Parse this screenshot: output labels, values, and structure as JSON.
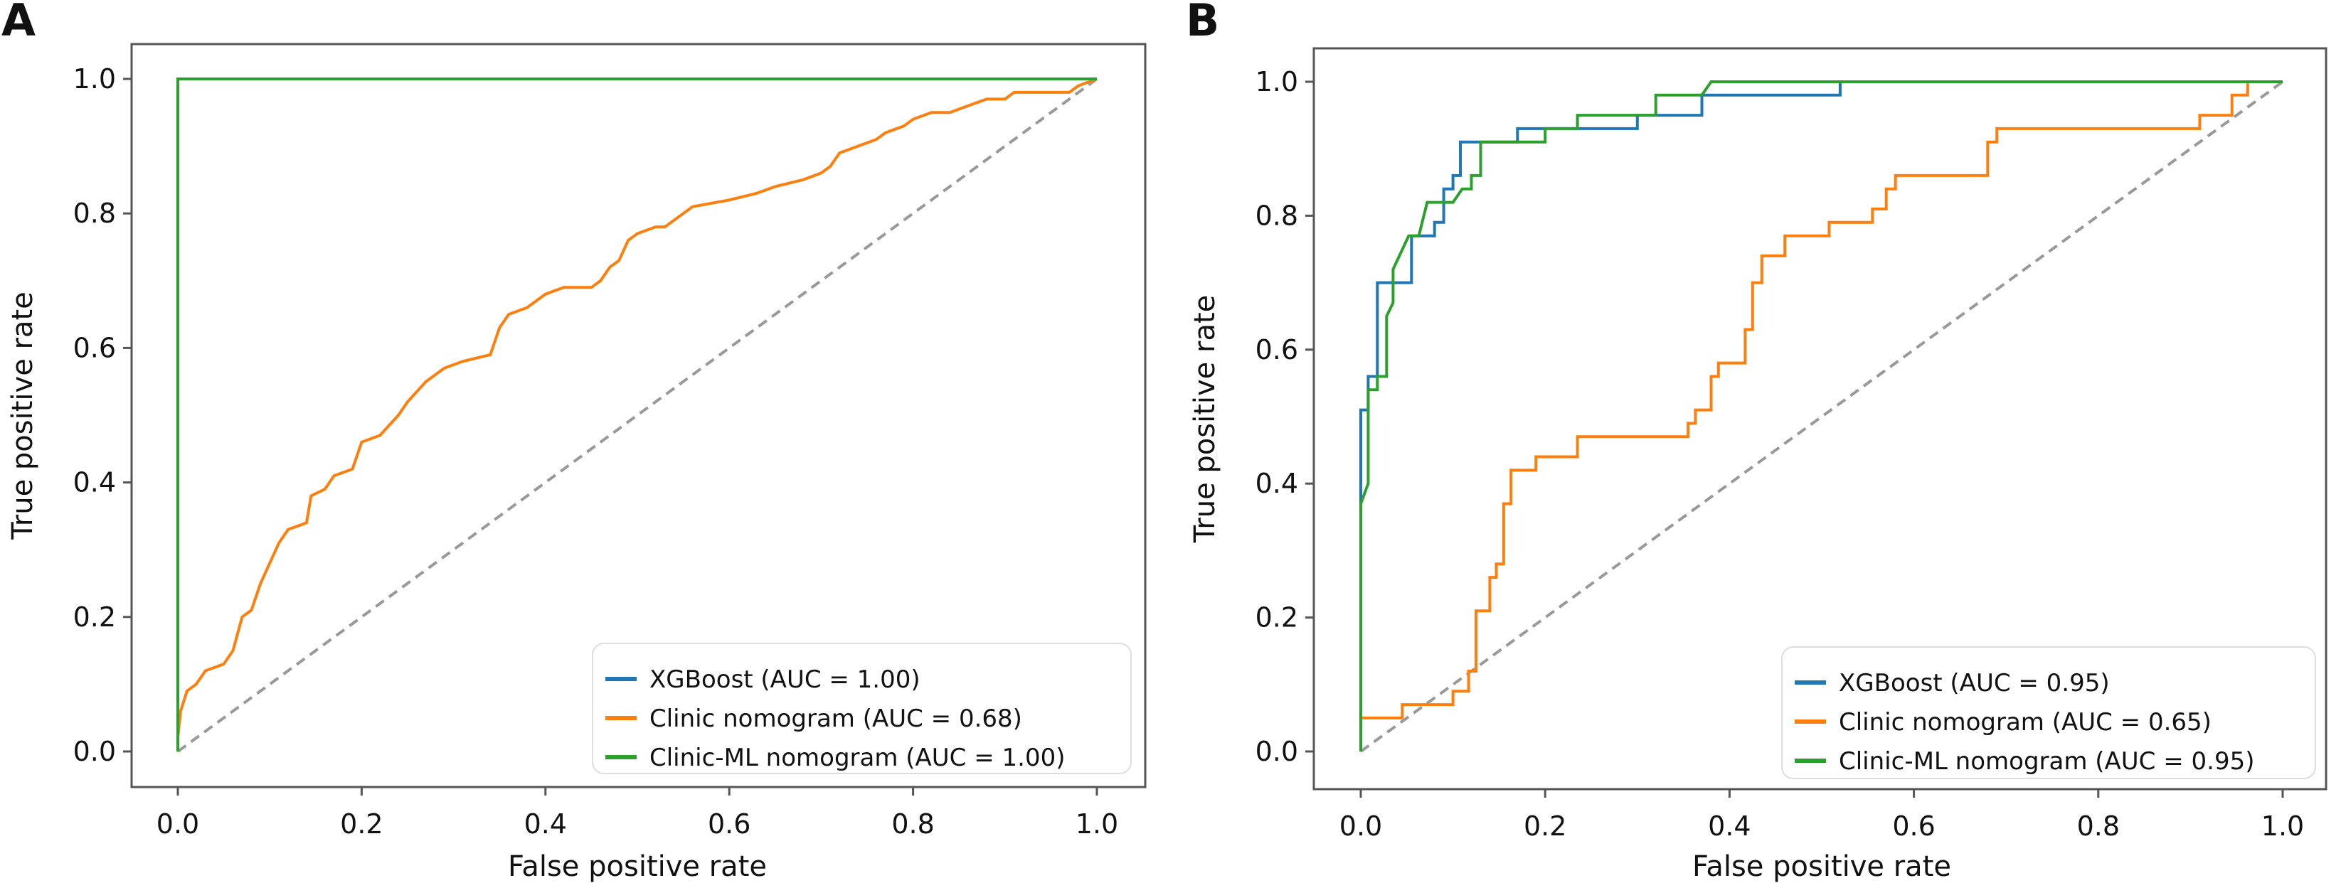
{
  "figure": {
    "panels": [
      "A",
      "B"
    ]
  },
  "chart_data": [
    {
      "panel_label": "A",
      "type": "line",
      "title": "",
      "xlabel": "False positive rate",
      "ylabel": "True positive rate",
      "xlim": [
        0,
        1
      ],
      "ylim": [
        0,
        1
      ],
      "xticks": [
        "0.0",
        "0.2",
        "0.4",
        "0.6",
        "0.8",
        "1.0"
      ],
      "yticks": [
        "0.0",
        "0.2",
        "0.4",
        "0.6",
        "0.8",
        "1.0"
      ],
      "grid": false,
      "legend_position": "lower-right",
      "reference_line": {
        "name": "chance",
        "style": "dashed",
        "color": "#999999",
        "points": [
          [
            0,
            0
          ],
          [
            1,
            1
          ]
        ]
      },
      "series": [
        {
          "name": "XGBoost (AUC = 1.00)",
          "auc": 1.0,
          "color": "#1f77b4",
          "points": [
            [
              0,
              0
            ],
            [
              0,
              1
            ],
            [
              1,
              1
            ]
          ]
        },
        {
          "name": "Clinic nomogram (AUC = 0.68)",
          "auc": 0.68,
          "color": "#ff7f0e",
          "points": [
            [
              0,
              0
            ],
            [
              0,
              0.02
            ],
            [
              0.003,
              0.06
            ],
            [
              0.01,
              0.09
            ],
            [
              0.02,
              0.1
            ],
            [
              0.03,
              0.12
            ],
            [
              0.05,
              0.13
            ],
            [
              0.06,
              0.15
            ],
            [
              0.07,
              0.2
            ],
            [
              0.08,
              0.21
            ],
            [
              0.09,
              0.25
            ],
            [
              0.1,
              0.28
            ],
            [
              0.11,
              0.31
            ],
            [
              0.12,
              0.33
            ],
            [
              0.14,
              0.34
            ],
            [
              0.145,
              0.38
            ],
            [
              0.16,
              0.39
            ],
            [
              0.17,
              0.41
            ],
            [
              0.19,
              0.42
            ],
            [
              0.2,
              0.46
            ],
            [
              0.22,
              0.47
            ],
            [
              0.24,
              0.5
            ],
            [
              0.25,
              0.52
            ],
            [
              0.27,
              0.55
            ],
            [
              0.29,
              0.57
            ],
            [
              0.31,
              0.58
            ],
            [
              0.34,
              0.59
            ],
            [
              0.35,
              0.63
            ],
            [
              0.36,
              0.65
            ],
            [
              0.38,
              0.66
            ],
            [
              0.4,
              0.68
            ],
            [
              0.42,
              0.69
            ],
            [
              0.45,
              0.69
            ],
            [
              0.46,
              0.7
            ],
            [
              0.47,
              0.72
            ],
            [
              0.48,
              0.73
            ],
            [
              0.49,
              0.76
            ],
            [
              0.5,
              0.77
            ],
            [
              0.52,
              0.78
            ],
            [
              0.53,
              0.78
            ],
            [
              0.55,
              0.8
            ],
            [
              0.56,
              0.81
            ],
            [
              0.6,
              0.82
            ],
            [
              0.63,
              0.83
            ],
            [
              0.65,
              0.84
            ],
            [
              0.68,
              0.85
            ],
            [
              0.7,
              0.86
            ],
            [
              0.71,
              0.87
            ],
            [
              0.72,
              0.89
            ],
            [
              0.74,
              0.9
            ],
            [
              0.76,
              0.91
            ],
            [
              0.77,
              0.92
            ],
            [
              0.79,
              0.93
            ],
            [
              0.8,
              0.94
            ],
            [
              0.82,
              0.95
            ],
            [
              0.84,
              0.95
            ],
            [
              0.86,
              0.96
            ],
            [
              0.88,
              0.97
            ],
            [
              0.9,
              0.97
            ],
            [
              0.91,
              0.98
            ],
            [
              0.97,
              0.98
            ],
            [
              0.98,
              0.99
            ],
            [
              1,
              1
            ]
          ]
        },
        {
          "name": "Clinic-ML nomogram (AUC = 1.00)",
          "auc": 1.0,
          "color": "#2ca02c",
          "points": [
            [
              0,
              0
            ],
            [
              0,
              1
            ],
            [
              1,
              1
            ]
          ]
        }
      ]
    },
    {
      "panel_label": "B",
      "type": "line",
      "title": "",
      "xlabel": "False positive rate",
      "ylabel": "True positive rate",
      "xlim": [
        0,
        1
      ],
      "ylim": [
        0,
        1
      ],
      "xticks": [
        "0.0",
        "0.2",
        "0.4",
        "0.6",
        "0.8",
        "1.0"
      ],
      "yticks": [
        "0.0",
        "0.2",
        "0.4",
        "0.6",
        "0.8",
        "1.0"
      ],
      "grid": false,
      "legend_position": "lower-right",
      "reference_line": {
        "name": "chance",
        "style": "dashed",
        "color": "#999999",
        "points": [
          [
            0,
            0
          ],
          [
            1,
            1
          ]
        ]
      },
      "series": [
        {
          "name": "XGBoost (AUC = 0.95)",
          "auc": 0.95,
          "color": "#1f77b4",
          "points": [
            [
              0,
              0
            ],
            [
              0,
              0.37
            ],
            [
              0,
              0.51
            ],
            [
              0.008,
              0.51
            ],
            [
              0.008,
              0.56
            ],
            [
              0.018,
              0.56
            ],
            [
              0.018,
              0.7
            ],
            [
              0.055,
              0.7
            ],
            [
              0.055,
              0.77
            ],
            [
              0.08,
              0.77
            ],
            [
              0.08,
              0.79
            ],
            [
              0.09,
              0.79
            ],
            [
              0.09,
              0.84
            ],
            [
              0.1,
              0.84
            ],
            [
              0.1,
              0.86
            ],
            [
              0.108,
              0.86
            ],
            [
              0.108,
              0.91
            ],
            [
              0.17,
              0.91
            ],
            [
              0.17,
              0.93
            ],
            [
              0.3,
              0.93
            ],
            [
              0.3,
              0.95
            ],
            [
              0.37,
              0.95
            ],
            [
              0.37,
              0.98
            ],
            [
              0.52,
              0.98
            ],
            [
              0.52,
              1
            ],
            [
              1,
              1
            ]
          ]
        },
        {
          "name": "Clinic nomogram (AUC = 0.65)",
          "auc": 0.65,
          "color": "#ff7f0e",
          "points": [
            [
              0,
              0
            ],
            [
              0,
              0.05
            ],
            [
              0.045,
              0.05
            ],
            [
              0.045,
              0.07
            ],
            [
              0.1,
              0.07
            ],
            [
              0.1,
              0.09
            ],
            [
              0.117,
              0.09
            ],
            [
              0.117,
              0.12
            ],
            [
              0.125,
              0.12
            ],
            [
              0.125,
              0.21
            ],
            [
              0.14,
              0.21
            ],
            [
              0.14,
              0.26
            ],
            [
              0.147,
              0.26
            ],
            [
              0.147,
              0.28
            ],
            [
              0.155,
              0.28
            ],
            [
              0.155,
              0.37
            ],
            [
              0.163,
              0.37
            ],
            [
              0.163,
              0.42
            ],
            [
              0.19,
              0.42
            ],
            [
              0.19,
              0.44
            ],
            [
              0.235,
              0.44
            ],
            [
              0.235,
              0.47
            ],
            [
              0.355,
              0.47
            ],
            [
              0.355,
              0.49
            ],
            [
              0.363,
              0.49
            ],
            [
              0.363,
              0.51
            ],
            [
              0.38,
              0.51
            ],
            [
              0.38,
              0.56
            ],
            [
              0.388,
              0.56
            ],
            [
              0.388,
              0.58
            ],
            [
              0.417,
              0.58
            ],
            [
              0.417,
              0.63
            ],
            [
              0.425,
              0.63
            ],
            [
              0.425,
              0.7
            ],
            [
              0.435,
              0.7
            ],
            [
              0.435,
              0.74
            ],
            [
              0.46,
              0.74
            ],
            [
              0.46,
              0.77
            ],
            [
              0.508,
              0.77
            ],
            [
              0.508,
              0.79
            ],
            [
              0.555,
              0.79
            ],
            [
              0.555,
              0.81
            ],
            [
              0.57,
              0.81
            ],
            [
              0.57,
              0.84
            ],
            [
              0.58,
              0.84
            ],
            [
              0.58,
              0.86
            ],
            [
              0.68,
              0.86
            ],
            [
              0.68,
              0.91
            ],
            [
              0.69,
              0.91
            ],
            [
              0.69,
              0.93
            ],
            [
              0.91,
              0.93
            ],
            [
              0.91,
              0.95
            ],
            [
              0.945,
              0.95
            ],
            [
              0.945,
              0.98
            ],
            [
              0.962,
              0.98
            ],
            [
              0.962,
              1
            ],
            [
              1,
              1
            ]
          ]
        },
        {
          "name": "Clinic-ML nomogram (AUC = 0.95)",
          "auc": 0.95,
          "color": "#2ca02c",
          "points": [
            [
              0,
              0
            ],
            [
              0,
              0.37
            ],
            [
              0.008,
              0.4
            ],
            [
              0.008,
              0.54
            ],
            [
              0.018,
              0.54
            ],
            [
              0.018,
              0.56
            ],
            [
              0.028,
              0.56
            ],
            [
              0.028,
              0.65
            ],
            [
              0.035,
              0.67
            ],
            [
              0.035,
              0.72
            ],
            [
              0.052,
              0.77
            ],
            [
              0.063,
              0.77
            ],
            [
              0.072,
              0.82
            ],
            [
              0.1,
              0.82
            ],
            [
              0.11,
              0.84
            ],
            [
              0.12,
              0.84
            ],
            [
              0.12,
              0.86
            ],
            [
              0.13,
              0.86
            ],
            [
              0.13,
              0.91
            ],
            [
              0.2,
              0.91
            ],
            [
              0.2,
              0.93
            ],
            [
              0.235,
              0.93
            ],
            [
              0.235,
              0.95
            ],
            [
              0.32,
              0.95
            ],
            [
              0.32,
              0.98
            ],
            [
              0.37,
              0.98
            ],
            [
              0.38,
              1
            ],
            [
              1,
              1
            ]
          ]
        }
      ]
    }
  ]
}
